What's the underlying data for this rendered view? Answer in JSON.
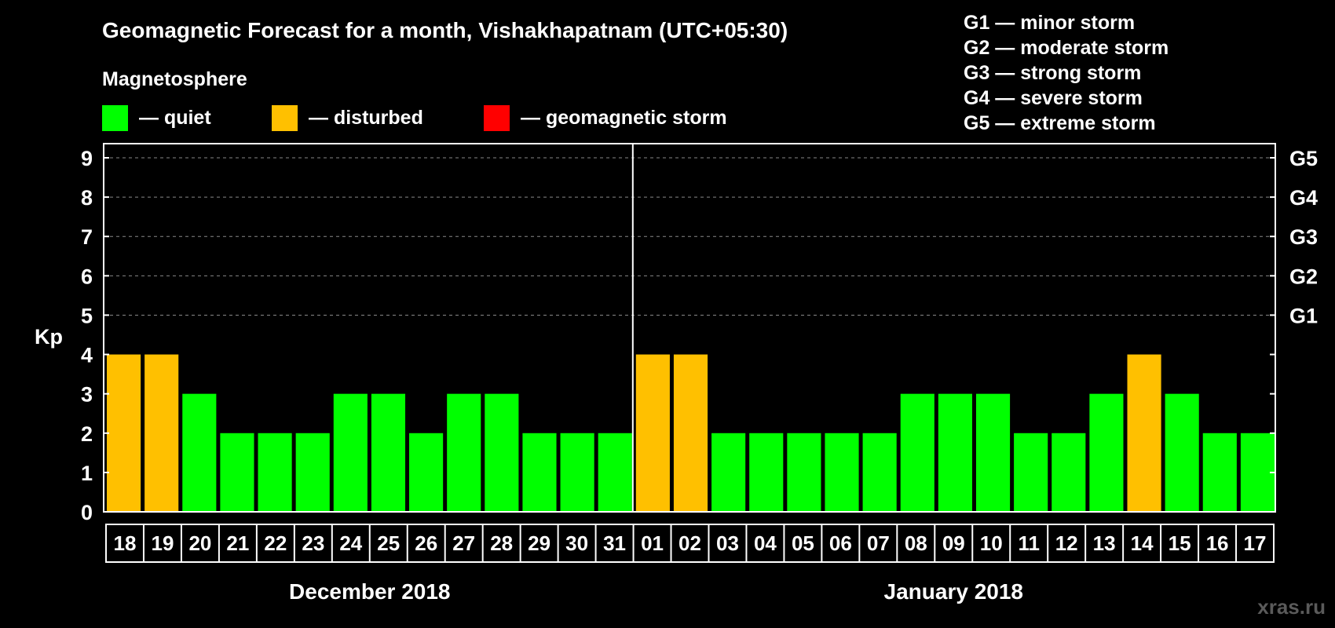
{
  "chart_data": {
    "type": "bar",
    "title": "Geomagnetic Forecast for a month, Vishakhapatnam (UTC+05:30)",
    "legend_title": "Magnetosphere",
    "legend": [
      {
        "label": "— quiet",
        "color": "#00ff00"
      },
      {
        "label": "— disturbed",
        "color": "#ffc000"
      },
      {
        "label": "— geomagnetic storm",
        "color": "#ff0000"
      }
    ],
    "storm_scale": [
      "G1 — minor storm",
      "G2 — moderate storm",
      "G3 — strong storm",
      "G4 — severe storm",
      "G5 — extreme storm"
    ],
    "ylabel": "Kp",
    "ylim": [
      0,
      9
    ],
    "yticks": [
      "0",
      "1",
      "2",
      "3",
      "4",
      "5",
      "6",
      "7",
      "8",
      "9"
    ],
    "right_ticks": [
      {
        "value": 5,
        "label": "G1"
      },
      {
        "value": 6,
        "label": "G2"
      },
      {
        "value": 7,
        "label": "G3"
      },
      {
        "value": 8,
        "label": "G4"
      },
      {
        "value": 9,
        "label": "G5"
      }
    ],
    "categories": [
      "18",
      "19",
      "20",
      "21",
      "22",
      "23",
      "24",
      "25",
      "26",
      "27",
      "28",
      "29",
      "30",
      "31",
      "01",
      "02",
      "03",
      "04",
      "05",
      "06",
      "07",
      "08",
      "09",
      "10",
      "11",
      "12",
      "13",
      "14",
      "15",
      "16",
      "17"
    ],
    "values": [
      4,
      4,
      3,
      2,
      2,
      2,
      3,
      3,
      2,
      3,
      3,
      2,
      2,
      2,
      4,
      4,
      2,
      2,
      2,
      2,
      2,
      3,
      3,
      3,
      2,
      2,
      3,
      4,
      3,
      2,
      2
    ],
    "status": [
      "disturbed",
      "disturbed",
      "quiet",
      "quiet",
      "quiet",
      "quiet",
      "quiet",
      "quiet",
      "quiet",
      "quiet",
      "quiet",
      "quiet",
      "quiet",
      "quiet",
      "disturbed",
      "disturbed",
      "quiet",
      "quiet",
      "quiet",
      "quiet",
      "quiet",
      "quiet",
      "quiet",
      "quiet",
      "quiet",
      "quiet",
      "quiet",
      "disturbed",
      "quiet",
      "quiet",
      "quiet"
    ],
    "months": [
      {
        "label": "December 2018",
        "start": 0,
        "end": 13
      },
      {
        "label": "January 2018",
        "start": 14,
        "end": 30
      }
    ],
    "grid": true,
    "colors": {
      "quiet": "#00ff00",
      "disturbed": "#ffc000",
      "storm": "#ff0000"
    }
  },
  "watermark": "xras.ru"
}
